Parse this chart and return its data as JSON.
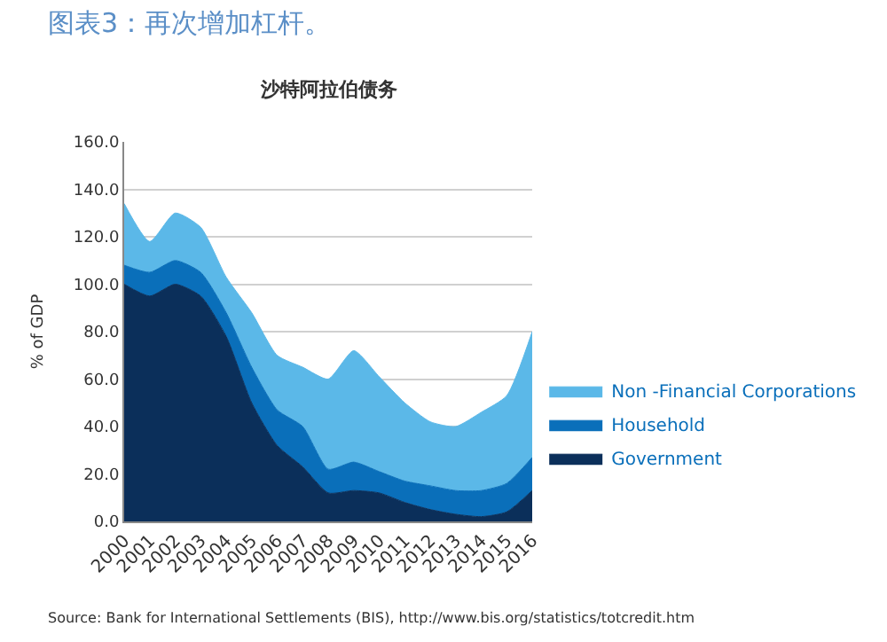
{
  "chart_data": {
    "type": "area",
    "title": "图表3：再次增加杠杆。",
    "subtitle": "沙特阿拉伯债务",
    "ylabel": "% of GDP",
    "stacked": true,
    "x": [
      2000,
      2001,
      2002,
      2003,
      2004,
      2005,
      2006,
      2007,
      2008,
      2009,
      2010,
      2011,
      2012,
      2013,
      2014,
      2015,
      2016
    ],
    "series": [
      {
        "name": "Government",
        "color": "#0b2f5a",
        "values": [
          100,
          95,
          100,
          95,
          78,
          50,
          32,
          23,
          12,
          13,
          12,
          8,
          5,
          3,
          2,
          4,
          13
        ]
      },
      {
        "name": "Household",
        "color": "#0a6fba",
        "values": [
          8,
          10,
          10,
          10,
          10,
          15,
          15,
          17,
          10,
          12,
          9,
          9,
          10,
          10,
          11,
          12,
          14
        ]
      },
      {
        "name": "Non -Financial Corporations",
        "color": "#5bb8e8",
        "values": [
          26,
          13,
          20,
          19,
          15,
          23,
          23,
          25,
          38,
          47,
          40,
          33,
          27,
          27,
          33,
          37,
          53
        ]
      }
    ],
    "xlim": [
      2000,
      2016
    ],
    "xticks": [
      2000,
      2001,
      2002,
      2003,
      2004,
      2005,
      2006,
      2007,
      2008,
      2009,
      2010,
      2011,
      2012,
      2013,
      2014,
      2015,
      2016
    ],
    "ylim": [
      0,
      160
    ],
    "yticks": [
      {
        "value": 0,
        "label": "0.0"
      },
      {
        "value": 20,
        "label": "20.0"
      },
      {
        "value": 40,
        "label": "40.0"
      },
      {
        "value": 60,
        "label": "60.0"
      },
      {
        "value": 80,
        "label": "80.0"
      },
      {
        "value": 100,
        "label": "100.0"
      },
      {
        "value": 120,
        "label": "120.0"
      },
      {
        "value": 140,
        "label": "140.0"
      },
      {
        "value": 160,
        "label": "160.0"
      }
    ],
    "grid": "y",
    "legend": "right",
    "annotations": [
      "Source: Bank for International Settlements (BIS), http://www.bis.org/statistics/totcredit.htm"
    ]
  }
}
